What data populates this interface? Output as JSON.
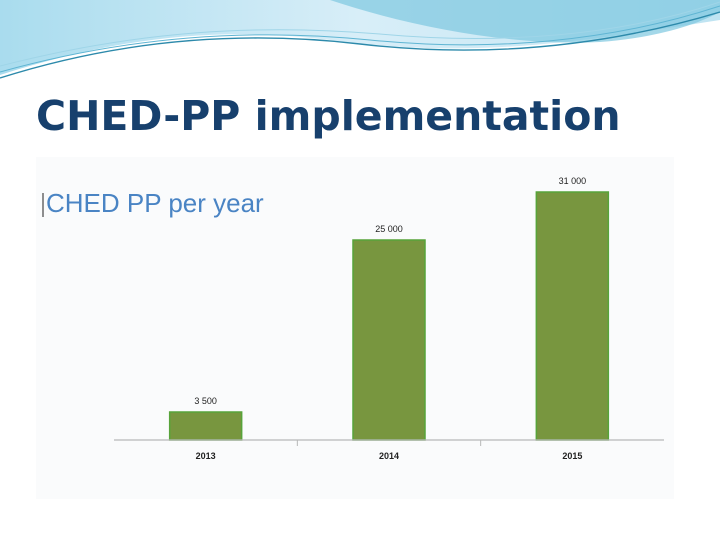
{
  "slide": {
    "title": "CHED-PP implementation"
  },
  "colors": {
    "title": "#17406d",
    "bar_fill": "#78963f",
    "bar_edge": "#57a33a",
    "chart_title": "#4a84c4",
    "axis": "#b8b8b8",
    "labels": "#222222",
    "wave_light": "#d8eef8",
    "wave_mid": "#7ec8e0",
    "wave_dark": "#2d8aab"
  },
  "chart_data": {
    "type": "bar",
    "title": "CHED PP per year",
    "categories": [
      "2013",
      "2014",
      "2015"
    ],
    "values": [
      3500,
      25000,
      31000
    ],
    "data_labels": [
      "3 500",
      "25 000",
      "31 000"
    ],
    "ylim": [
      0,
      31000
    ],
    "grid": false,
    "legend": "none"
  }
}
